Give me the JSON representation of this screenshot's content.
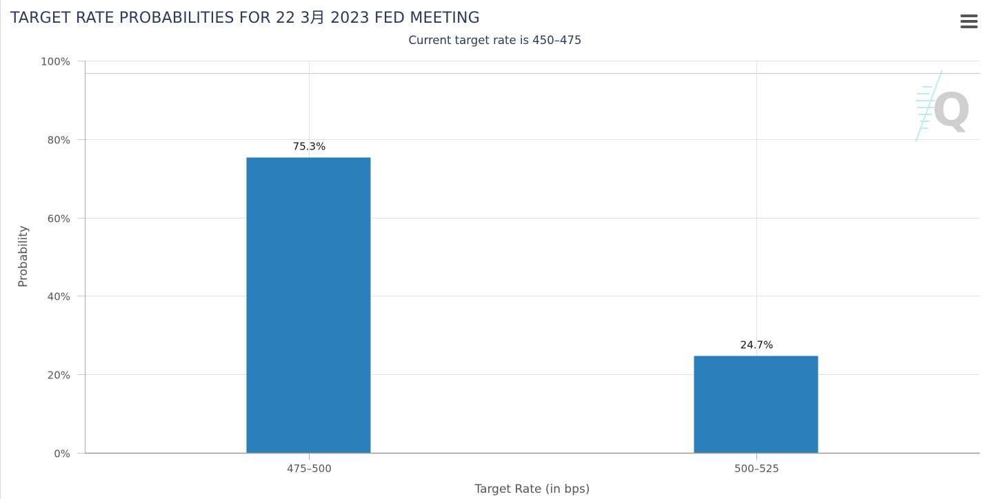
{
  "chart_data": {
    "type": "bar",
    "title": "TARGET RATE PROBABILITIES FOR 22 3月 2023 FED MEETING",
    "subtitle": "Current target rate is 450–475",
    "xlabel": "Target Rate (in bps)",
    "ylabel": "Probability",
    "categories": [
      "475–500",
      "500–525"
    ],
    "values": [
      75.3,
      24.7
    ],
    "data_labels": [
      "75.3%",
      "24.7%"
    ],
    "ylim": [
      0,
      100
    ],
    "yticks": [
      0,
      20,
      40,
      60,
      80,
      100
    ],
    "ytick_labels": [
      "0%",
      "20%",
      "40%",
      "60%",
      "80%",
      "100%"
    ],
    "grid": true,
    "legend": "none",
    "bar_color": "#2a7fba"
  },
  "watermark": {
    "icon": "q-logo-icon",
    "letter": "Q"
  },
  "menu": {
    "icon": "hamburger-menu-icon"
  }
}
